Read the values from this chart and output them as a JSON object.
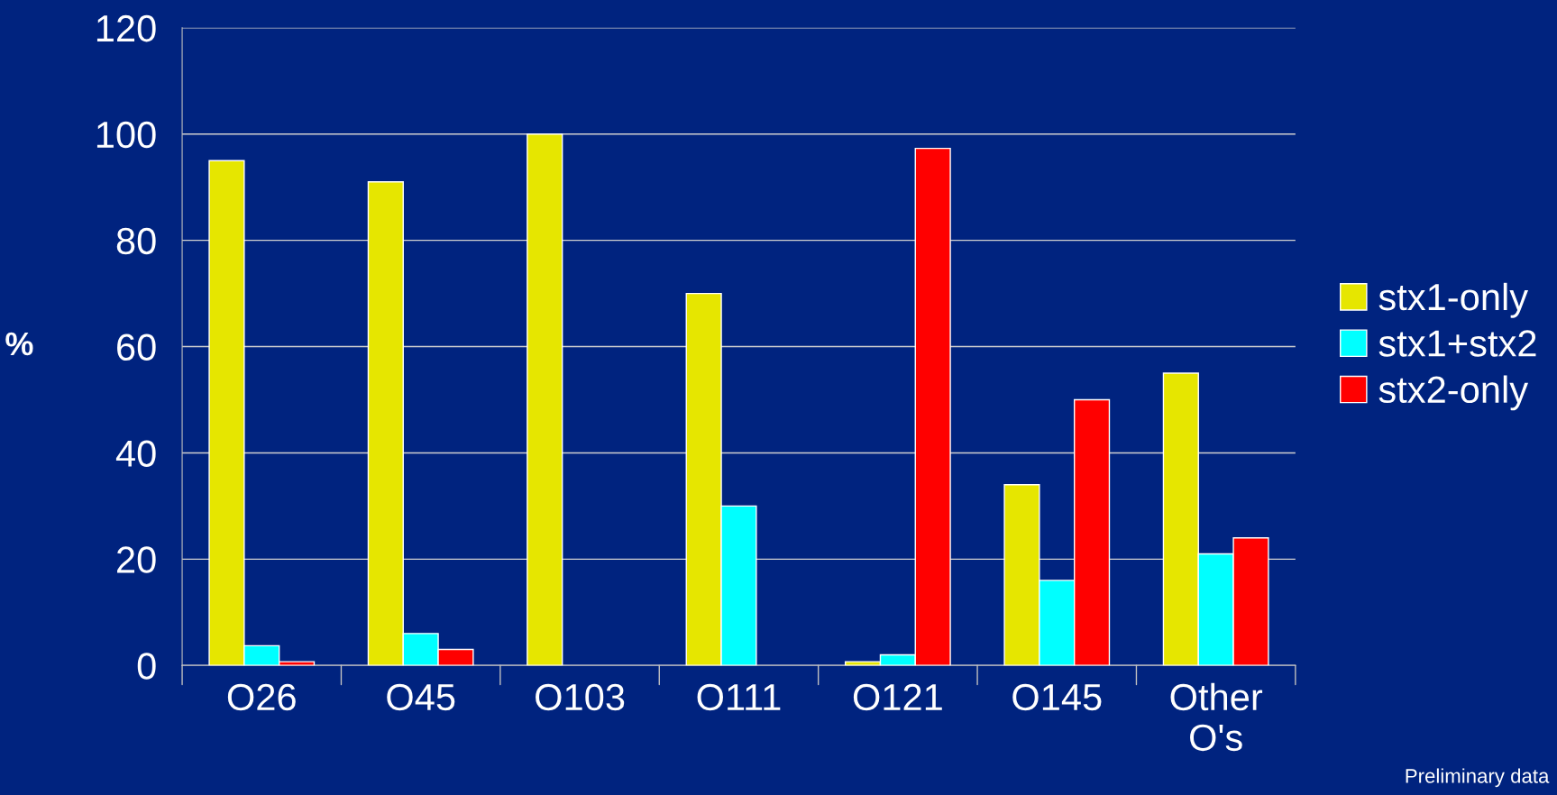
{
  "chart_data": {
    "type": "bar",
    "ylabel": "%",
    "categories": [
      "O26",
      "O45",
      "O103",
      "O111",
      "O121",
      "O145",
      "Other\nO's"
    ],
    "series": [
      {
        "name": "stx1-only",
        "color": "#e6e600",
        "values": [
          95,
          91,
          100,
          70,
          0.7,
          34,
          55
        ]
      },
      {
        "name": "stx1+stx2",
        "color": "#00ffff",
        "values": [
          3.7,
          6,
          0,
          30,
          2,
          16,
          21
        ]
      },
      {
        "name": "stx2-only",
        "color": "#ff0000",
        "values": [
          0.7,
          3,
          0,
          0,
          97.3,
          50,
          24
        ]
      }
    ],
    "ylim": [
      0,
      120
    ],
    "yticks": [
      0,
      20,
      40,
      60,
      80,
      100,
      120
    ],
    "grid": "y",
    "legend": "right",
    "annotations": [
      "Preliminary data"
    ]
  }
}
